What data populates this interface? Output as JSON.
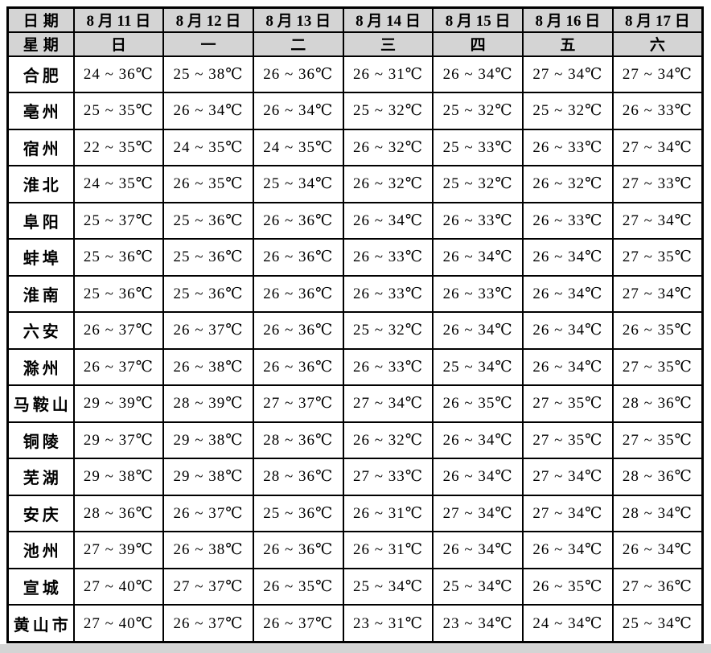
{
  "colors": {
    "header_bg": "#d4d4d4",
    "border": "#000000",
    "cell_bg": "#ffffff",
    "page_bg": "#ffffff"
  },
  "table": {
    "corner_date_label": "日期",
    "corner_week_label": "星期",
    "dates": [
      "8 月 11 日",
      "8 月 12 日",
      "8 月 13 日",
      "8 月 14 日",
      "8 月 15 日",
      "8 月 16 日",
      "8 月 17 日"
    ],
    "weekdays": [
      "日",
      "一",
      "二",
      "三",
      "四",
      "五",
      "六"
    ],
    "rows": [
      {
        "city": "合肥",
        "temps": [
          "24 ~ 36℃",
          "25 ~ 38℃",
          "26 ~ 36℃",
          "26 ~ 31℃",
          "26 ~ 34℃",
          "27 ~ 34℃",
          "27 ~ 34℃"
        ]
      },
      {
        "city": "亳州",
        "temps": [
          "25 ~ 35℃",
          "26 ~ 34℃",
          "26 ~ 34℃",
          "25 ~ 32℃",
          "25 ~ 32℃",
          "25 ~ 32℃",
          "26 ~ 33℃"
        ]
      },
      {
        "city": "宿州",
        "temps": [
          "22 ~ 35℃",
          "24 ~ 35℃",
          "24 ~ 35℃",
          "26 ~ 32℃",
          "25 ~ 33℃",
          "26 ~ 33℃",
          "27 ~ 34℃"
        ]
      },
      {
        "city": "淮北",
        "temps": [
          "24 ~ 35℃",
          "26 ~ 35℃",
          "25 ~ 34℃",
          "26 ~ 32℃",
          "25 ~ 32℃",
          "26 ~ 32℃",
          "27 ~ 33℃"
        ]
      },
      {
        "city": "阜阳",
        "temps": [
          "25 ~ 37℃",
          "25 ~ 36℃",
          "26 ~ 36℃",
          "26 ~ 34℃",
          "26 ~ 33℃",
          "26 ~ 33℃",
          "27 ~ 34℃"
        ]
      },
      {
        "city": "蚌埠",
        "temps": [
          "25 ~ 36℃",
          "25 ~ 36℃",
          "26 ~ 36℃",
          "26 ~ 33℃",
          "26 ~ 34℃",
          "26 ~ 34℃",
          "27 ~ 35℃"
        ]
      },
      {
        "city": "淮南",
        "temps": [
          "25 ~ 36℃",
          "25 ~ 36℃",
          "26 ~ 36℃",
          "26 ~ 33℃",
          "26 ~ 33℃",
          "26 ~ 34℃",
          "27 ~ 34℃"
        ]
      },
      {
        "city": "六安",
        "temps": [
          "26 ~ 37℃",
          "26 ~ 37℃",
          "26 ~ 36℃",
          "25 ~ 32℃",
          "26 ~ 34℃",
          "26 ~ 34℃",
          "26 ~ 35℃"
        ]
      },
      {
        "city": "滁州",
        "temps": [
          "26 ~ 37℃",
          "26 ~ 38℃",
          "26 ~ 36℃",
          "26 ~ 33℃",
          "25 ~ 34℃",
          "26 ~ 34℃",
          "27 ~ 35℃"
        ]
      },
      {
        "city": "马鞍山",
        "temps": [
          "29 ~ 39℃",
          "28 ~ 39℃",
          "27 ~ 37℃",
          "27 ~ 34℃",
          "26 ~ 35℃",
          "27 ~ 35℃",
          "28 ~ 36℃"
        ]
      },
      {
        "city": "铜陵",
        "temps": [
          "29 ~ 37℃",
          "29 ~ 38℃",
          "28 ~ 36℃",
          "26 ~ 32℃",
          "26 ~ 34℃",
          "27 ~ 35℃",
          "27 ~ 35℃"
        ]
      },
      {
        "city": "芜湖",
        "temps": [
          "29 ~ 38℃",
          "29 ~ 38℃",
          "28 ~ 36℃",
          "27 ~ 33℃",
          "26 ~ 34℃",
          "27 ~ 34℃",
          "28 ~ 36℃"
        ]
      },
      {
        "city": "安庆",
        "temps": [
          "28 ~ 36℃",
          "26 ~ 37℃",
          "25 ~ 36℃",
          "26 ~ 31℃",
          "27 ~ 34℃",
          "27 ~ 34℃",
          "28 ~ 34℃"
        ]
      },
      {
        "city": "池州",
        "temps": [
          "27 ~ 39℃",
          "26 ~ 38℃",
          "26 ~ 36℃",
          "26 ~ 31℃",
          "26 ~ 34℃",
          "26 ~ 34℃",
          "26 ~ 34℃"
        ]
      },
      {
        "city": "宣城",
        "temps": [
          "27 ~ 40℃",
          "27 ~ 37℃",
          "26 ~ 35℃",
          "25 ~ 34℃",
          "25 ~ 34℃",
          "26 ~ 35℃",
          "27 ~ 36℃"
        ]
      },
      {
        "city": "黄山市",
        "temps": [
          "27 ~ 40℃",
          "26 ~ 37℃",
          "26 ~ 37℃",
          "23 ~ 31℃",
          "23 ~ 34℃",
          "24 ~ 34℃",
          "25 ~ 34℃"
        ]
      }
    ]
  }
}
